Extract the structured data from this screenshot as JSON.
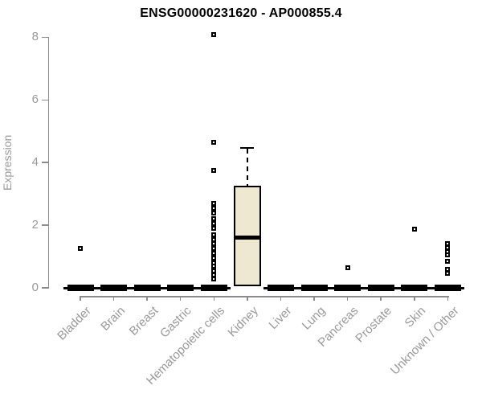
{
  "chart_data": {
    "type": "boxplot",
    "title": "ENSG00000231620 - AP000855.4",
    "ylabel": "Expression",
    "ylim": [
      0,
      8
    ],
    "yticks": [
      0,
      2,
      4,
      6,
      8
    ],
    "grid": false,
    "legend": "none",
    "categories": [
      "Bladder",
      "Brain",
      "Breast",
      "Gastric",
      "Hematopoietic cells",
      "Kidney",
      "Liver",
      "Lung",
      "Pancreas",
      "Prostate",
      "Skin",
      "Unknown / Other"
    ],
    "boxes": [
      {
        "category": "Bladder",
        "q1": 0,
        "median": 0,
        "q3": 0,
        "whisker_low": 0,
        "whisker_high": 0,
        "outliers": [
          1.25
        ]
      },
      {
        "category": "Brain",
        "q1": 0,
        "median": 0,
        "q3": 0,
        "whisker_low": 0,
        "whisker_high": 0,
        "outliers": []
      },
      {
        "category": "Breast",
        "q1": 0,
        "median": 0,
        "q3": 0,
        "whisker_low": 0,
        "whisker_high": 0,
        "outliers": []
      },
      {
        "category": "Gastric",
        "q1": 0,
        "median": 0,
        "q3": 0,
        "whisker_low": 0,
        "whisker_high": 0,
        "outliers": []
      },
      {
        "category": "Hematopoietic cells",
        "q1": 0,
        "median": 0,
        "q3": 0,
        "whisker_low": 0,
        "whisker_high": 0,
        "outliers": [
          8.1,
          4.65,
          3.75,
          2.7,
          2.55,
          2.4,
          2.2,
          2.05,
          1.9,
          1.7,
          1.55,
          1.4,
          1.25,
          1.1,
          0.95,
          0.8,
          0.7,
          0.55,
          0.4,
          0.28
        ]
      },
      {
        "category": "Kidney",
        "q1": 0.05,
        "median": 1.6,
        "q3": 3.25,
        "whisker_low": 0.05,
        "whisker_high": 4.45,
        "outliers": []
      },
      {
        "category": "Liver",
        "q1": 0,
        "median": 0,
        "q3": 0,
        "whisker_low": 0,
        "whisker_high": 0,
        "outliers": []
      },
      {
        "category": "Lung",
        "q1": 0,
        "median": 0,
        "q3": 0,
        "whisker_low": 0,
        "whisker_high": 0,
        "outliers": []
      },
      {
        "category": "Pancreas",
        "q1": 0,
        "median": 0,
        "q3": 0,
        "whisker_low": 0,
        "whisker_high": 0,
        "outliers": [
          0.65
        ]
      },
      {
        "category": "Prostate",
        "q1": 0,
        "median": 0,
        "q3": 0,
        "whisker_low": 0,
        "whisker_high": 0,
        "outliers": []
      },
      {
        "category": "Skin",
        "q1": 0,
        "median": 0,
        "q3": 0,
        "whisker_low": 0,
        "whisker_high": 0,
        "outliers": [
          1.87
        ]
      },
      {
        "category": "Unknown / Other",
        "q1": 0,
        "median": 0,
        "q3": 0,
        "whisker_low": 0,
        "whisker_high": 0,
        "outliers": [
          1.4,
          1.28,
          1.16,
          1.05,
          0.85,
          0.6,
          0.45
        ]
      }
    ],
    "style": {
      "title_color": "#000000",
      "axis_color": "#8c8c8c",
      "label_color": "#999999",
      "box_fill": "#ede8cf",
      "box_border": "#000000",
      "median_color": "#000000",
      "point_color": "#000000",
      "background": "#ffffff"
    }
  }
}
